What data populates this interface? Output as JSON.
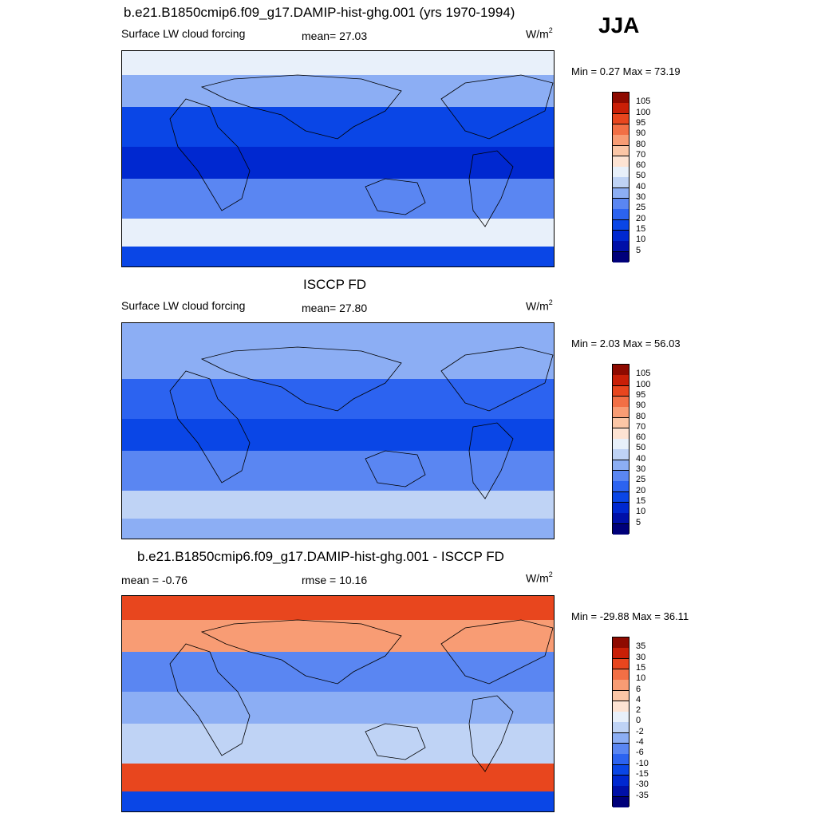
{
  "season": "JJA",
  "panels": [
    {
      "id": "model",
      "title": "b.e21.B1850cmip6.f09_g17.DAMIP-hist-ghg.001 (yrs 1970-1994)",
      "left_label": "Surface LW cloud forcing",
      "center_label": "mean=  27.03",
      "units_base": "W/m",
      "units_exp": "2",
      "minmax": "Min =   0.27 Max =  73.19"
    },
    {
      "id": "obs",
      "title": "ISCCP FD",
      "left_label": "Surface LW cloud forcing",
      "center_label": "mean=  27.80",
      "units_base": "W/m",
      "units_exp": "2",
      "minmax": "Min =   2.03 Max =  56.03"
    },
    {
      "id": "diff",
      "title": "b.e21.B1850cmip6.f09_g17.DAMIP-hist-ghg.001 - ISCCP FD",
      "left_label": "mean =  -0.76",
      "center_label": "rmse =  10.16",
      "units_base": "W/m",
      "units_exp": "2",
      "minmax": "Min = -29.88 Max =  36.11"
    }
  ],
  "chart_data": [
    {
      "type": "heatmap",
      "title": "b.e21.B1850cmip6.f09_g17.DAMIP-hist-ghg.001 (yrs 1970-1994)",
      "variable": "Surface LW cloud forcing",
      "units": "W/m2",
      "season": "JJA",
      "mean": 27.03,
      "min": 0.27,
      "max": 73.19,
      "colorbar_levels": [
        5,
        10,
        15,
        20,
        25,
        30,
        40,
        50,
        60,
        70,
        80,
        90,
        95,
        100,
        105
      ],
      "colorbar_colors": [
        "#00007a",
        "#0010a8",
        "#0028d0",
        "#0a46e6",
        "#2c63f0",
        "#5a86f2",
        "#8caef4",
        "#bfd3f5",
        "#e8f0fa",
        "#fde3d3",
        "#fbc6a6",
        "#f89c74",
        "#f26f45",
        "#e8461e",
        "#c91f07",
        "#8e0a00"
      ],
      "zonal_bands": [
        {
          "lat_range": "80N-60N",
          "value_approx": 55
        },
        {
          "lat_range": "60N-40N",
          "value_approx": 35
        },
        {
          "lat_range": "40N-10N",
          "value_approx": 15
        },
        {
          "lat_range": "10N-10S",
          "value_approx": 10
        },
        {
          "lat_range": "10S-40S",
          "value_approx": 25
        },
        {
          "lat_range": "40S-60S",
          "value_approx": 55
        },
        {
          "lat_range": "60S-90S",
          "value_approx": 15
        }
      ]
    },
    {
      "type": "heatmap",
      "title": "ISCCP FD",
      "variable": "Surface LW cloud forcing",
      "units": "W/m2",
      "season": "JJA",
      "mean": 27.8,
      "min": 2.03,
      "max": 56.03,
      "colorbar_levels": [
        5,
        10,
        15,
        20,
        25,
        30,
        40,
        50,
        60,
        70,
        80,
        90,
        95,
        100,
        105
      ],
      "colorbar_colors": [
        "#00007a",
        "#0010a8",
        "#0028d0",
        "#0a46e6",
        "#2c63f0",
        "#5a86f2",
        "#8caef4",
        "#bfd3f5",
        "#e8f0fa",
        "#fde3d3",
        "#fbc6a6",
        "#f89c74",
        "#f26f45",
        "#e8461e",
        "#c91f07",
        "#8e0a00"
      ],
      "zonal_bands": [
        {
          "lat_range": "80N-60N",
          "value_approx": 35
        },
        {
          "lat_range": "60N-40N",
          "value_approx": 30
        },
        {
          "lat_range": "40N-10N",
          "value_approx": 20
        },
        {
          "lat_range": "10N-10S",
          "value_approx": 15
        },
        {
          "lat_range": "10S-40S",
          "value_approx": 25
        },
        {
          "lat_range": "40S-60S",
          "value_approx": 40
        },
        {
          "lat_range": "60S-90S",
          "value_approx": 35
        }
      ]
    },
    {
      "type": "heatmap",
      "title": "b.e21.B1850cmip6.f09_g17.DAMIP-hist-ghg.001 - ISCCP FD",
      "units": "W/m2",
      "season": "JJA",
      "mean": -0.76,
      "rmse": 10.16,
      "min": -29.88,
      "max": 36.11,
      "colorbar_levels": [
        -35,
        -30,
        -15,
        -10,
        -6,
        -4,
        -2,
        0,
        2,
        4,
        6,
        10,
        15,
        30,
        35
      ],
      "colorbar_colors": [
        "#00007a",
        "#0010a8",
        "#0028d0",
        "#0a46e6",
        "#2c63f0",
        "#5a86f2",
        "#8caef4",
        "#bfd3f5",
        "#e8f0fa",
        "#fde3d3",
        "#fbc6a6",
        "#f89c74",
        "#f26f45",
        "#e8461e",
        "#c91f07",
        "#8e0a00"
      ],
      "zonal_bands": [
        {
          "lat_range": "80N-60N",
          "value_approx": 20
        },
        {
          "lat_range": "60N-40N",
          "value_approx": 6
        },
        {
          "lat_range": "40N-10N",
          "value_approx": -6
        },
        {
          "lat_range": "10N-10S",
          "value_approx": -4
        },
        {
          "lat_range": "10S-40S",
          "value_approx": -2
        },
        {
          "lat_range": "40S-60S",
          "value_approx": 20
        },
        {
          "lat_range": "60S-90S",
          "value_approx": -15
        }
      ]
    }
  ]
}
